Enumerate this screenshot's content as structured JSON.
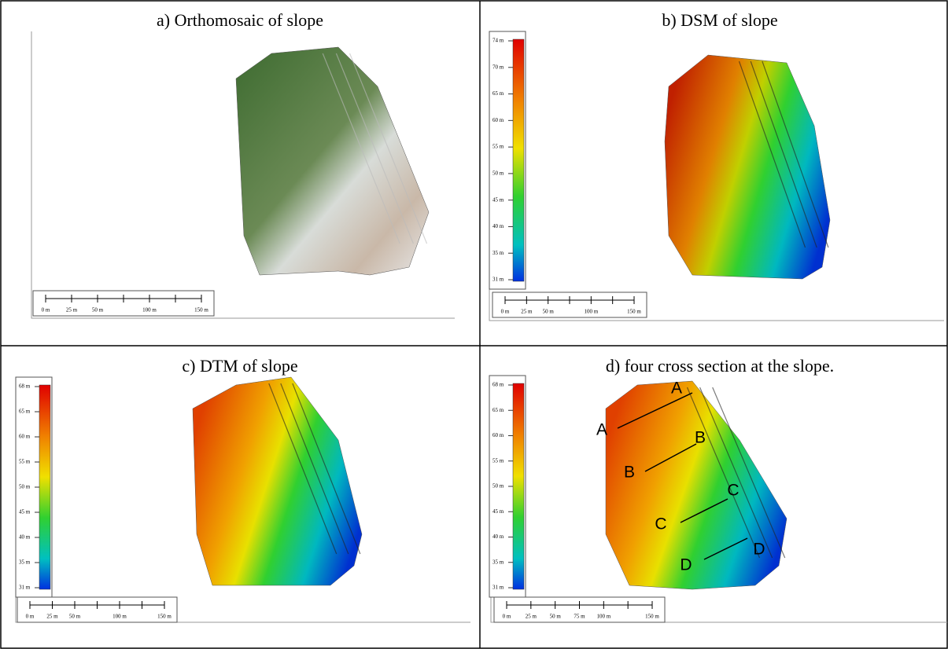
{
  "panels": [
    {
      "title": "a) Orthomosaic of slope",
      "scale_bar": [
        "0 m",
        "25 m",
        "50 m",
        "100 m",
        "150 m"
      ]
    },
    {
      "title": "b) DSM of slope",
      "colorbar": [
        "74 m",
        "70 m",
        "65 m",
        "60 m",
        "55 m",
        "50 m",
        "45 m",
        "40 m",
        "35 m",
        "31 m"
      ],
      "scale_bar": [
        "0 m",
        "25 m",
        "50 m",
        "100 m",
        "150 m"
      ]
    },
    {
      "title": "c) DTM of slope",
      "colorbar": [
        "68 m",
        "65 m",
        "60 m",
        "55 m",
        "50 m",
        "45 m",
        "40 m",
        "35 m",
        "31 m"
      ],
      "scale_bar": [
        "0 m",
        "25 m",
        "50 m",
        "100 m",
        "150 m"
      ]
    },
    {
      "title": "d) four cross section at the slope.",
      "colorbar": [
        "68 m",
        "65 m",
        "60 m",
        "55 m",
        "50 m",
        "45 m",
        "40 m",
        "35 m",
        "31 m"
      ],
      "scale_bar": [
        "0 m",
        "25 m",
        "50 m",
        "75 m",
        "100 m",
        "150 m"
      ],
      "sections": [
        "A",
        "A",
        "B",
        "B",
        "C",
        "C",
        "D",
        "D"
      ]
    }
  ]
}
